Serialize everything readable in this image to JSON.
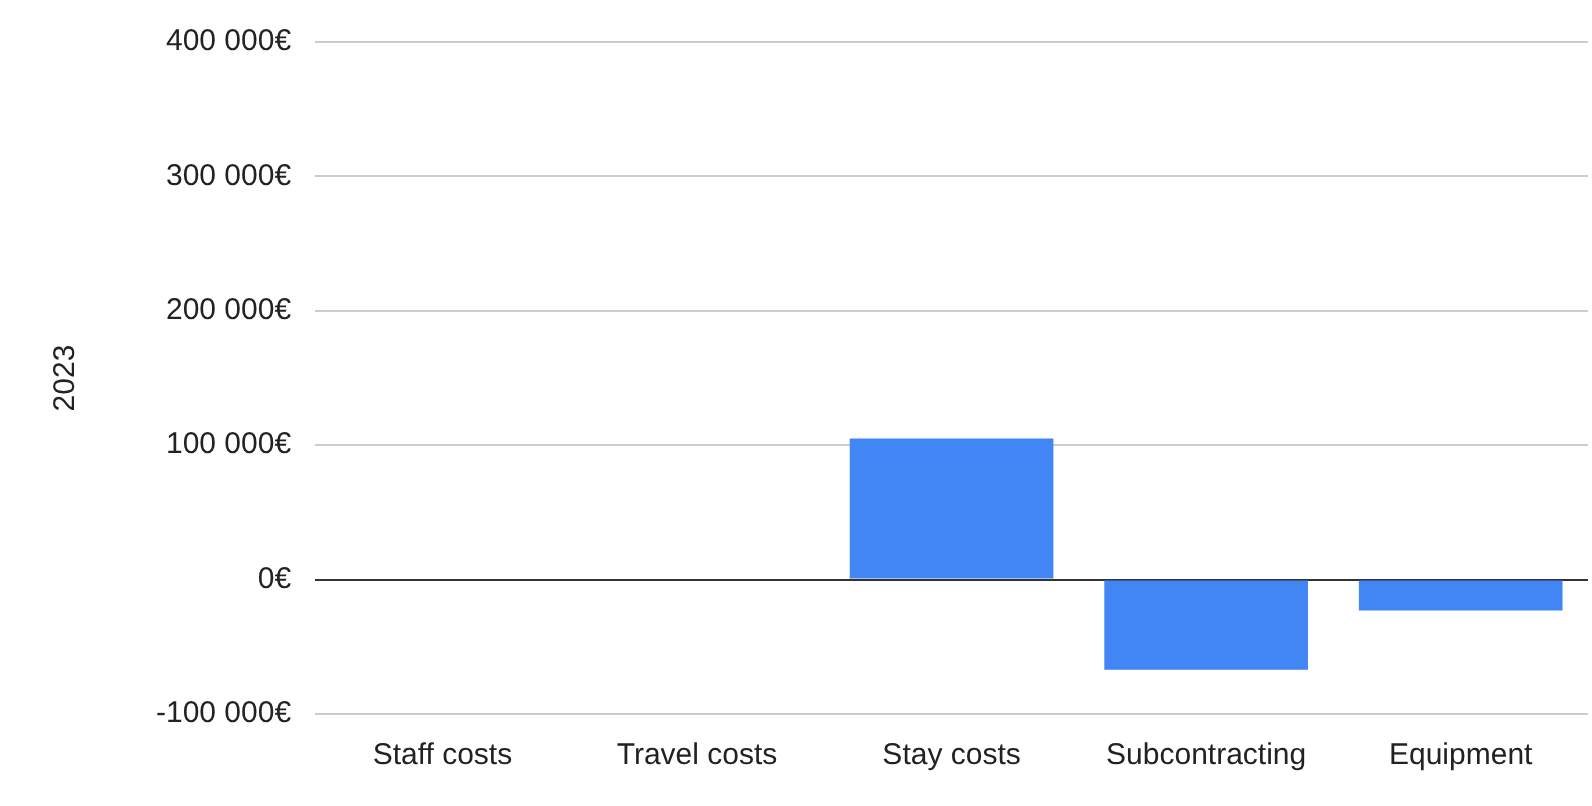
{
  "chart_data": {
    "type": "bar",
    "ylabel": "2023",
    "categories": [
      "Staff costs",
      "Travel costs",
      "Stay costs",
      "Subcontracting",
      "Equipment"
    ],
    "values": [
      0,
      0,
      105000,
      -67000,
      -23000
    ],
    "color": "#4285f4",
    "ylim": [
      -100000,
      400000
    ],
    "yticks": [
      {
        "value": -100000,
        "label": "-100 000€"
      },
      {
        "value": 0,
        "label": "0€"
      },
      {
        "value": 100000,
        "label": "100 000€"
      },
      {
        "value": 200000,
        "label": "200 000€"
      },
      {
        "value": 300000,
        "label": "300 000€"
      },
      {
        "value": 400000,
        "label": "400 000€"
      }
    ],
    "grid": "y",
    "legend": false
  }
}
